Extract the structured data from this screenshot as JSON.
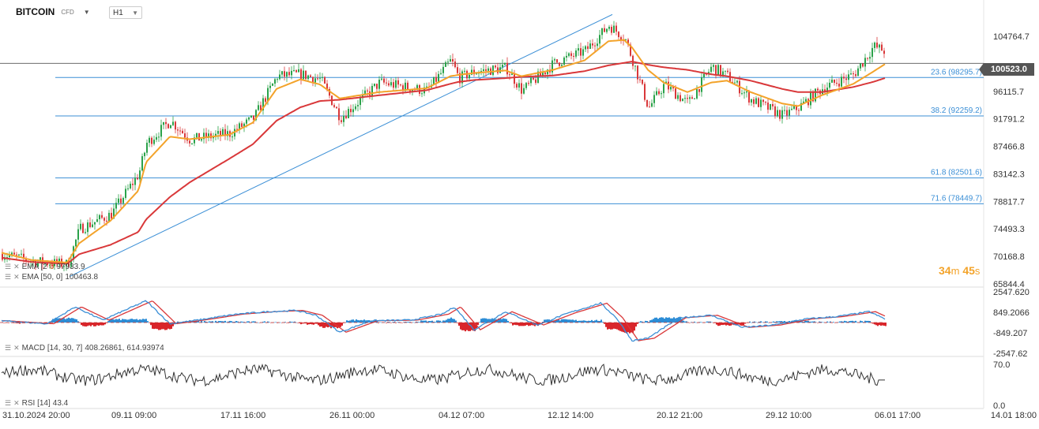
{
  "header": {
    "symbol": "BITCOIN",
    "symbol_sub": "CFD",
    "timeframe": "H1"
  },
  "current_price": "100523.0",
  "countdown": {
    "minutes": "34",
    "minutes_unit": "m",
    "seconds": "45",
    "seconds_unit": "s"
  },
  "colors": {
    "price_up": "#2aa24a",
    "price_down": "#d9383a",
    "ema_fast": "#f3a32a",
    "ema_slow": "#d9383a",
    "fib": "#3b8fd6",
    "trendline": "#3b8fd6",
    "macd_line": "#3b8fd6",
    "signal_line": "#d9383a",
    "hist_pos": "#2c8dd6",
    "hist_neg": "#d9252a",
    "rsi": "#333333"
  },
  "legends": {
    "ema_fast_label": "EMA [2",
    "ema_fast_mid": "0",
    "ema_fast_value": "97933.9",
    "ema_slow_label": "EMA [50, 0]",
    "ema_slow_value": "100463.8",
    "macd_label": "MACD [14, 30, 7]",
    "macd_value1": "408.26861,",
    "macd_value2": "614.93974",
    "rsi_label": "RSI [14]",
    "rsi_value": "43.4"
  },
  "chart_data": [
    {
      "type": "line",
      "name": "price",
      "ylim": [
        65844.4,
        108000
      ],
      "y_ticks": [
        "104764.7",
        "100439.9",
        "96115.7",
        "91791.2",
        "87466.8",
        "83142.3",
        "78817.7",
        "74493.3",
        "70168.8",
        "65844.4"
      ],
      "x_ticks": [
        "31.10.2024",
        "20:00",
        "09.11",
        "09:00",
        "17.11",
        "16:00",
        "26.11",
        "00:00",
        "04.12",
        "07:00",
        "12.12",
        "14:00",
        "20.12",
        "21:00",
        "29.12",
        "10:00",
        "06.01",
        "17:00",
        "14.01",
        "18:00"
      ],
      "x_range": [
        0,
        1245
      ],
      "ohlc_anchors_x": [
        0,
        40,
        85,
        100,
        140,
        175,
        185,
        215,
        240,
        290,
        320,
        350,
        380,
        405,
        430,
        480,
        540,
        570,
        580,
        600,
        640,
        660,
        700,
        740,
        770,
        790,
        800,
        820,
        840,
        870,
        900,
        920,
        950,
        990,
        1010,
        1040,
        1080,
        1105,
        1120
      ],
      "ohlc_anchors_close": [
        70600,
        69400,
        68900,
        74500,
        76800,
        83200,
        88000,
        91500,
        88500,
        89500,
        91800,
        98500,
        98800,
        98000,
        92000,
        97500,
        96200,
        101000,
        98200,
        99200,
        99800,
        96200,
        100500,
        102500,
        106500,
        104500,
        101000,
        93500,
        97200,
        94200,
        100000,
        98500,
        94800,
        92300,
        93600,
        96600,
        98800,
        103200,
        102400
      ],
      "last_value": 100523.0,
      "ema_fast_anchors": [
        70800,
        69600,
        69200,
        72200,
        75800,
        80500,
        85000,
        89000,
        88600,
        89300,
        91200,
        96500,
        98000,
        97200,
        95000,
        96000,
        96600,
        98500,
        98700,
        99000,
        99400,
        98500,
        99500,
        101000,
        104000,
        104200,
        103000,
        99500,
        97500,
        96000,
        97500,
        97800,
        96000,
        94200,
        93800,
        95500,
        97300,
        99200,
        100400
      ],
      "ema_slow_anchors": [
        70000,
        69300,
        69000,
        70500,
        72000,
        74000,
        76000,
        79500,
        81800,
        85500,
        87800,
        91500,
        93600,
        94600,
        94800,
        95500,
        96300,
        97300,
        97600,
        97900,
        98200,
        98400,
        98600,
        99300,
        100200,
        100600,
        100800,
        100300,
        99900,
        99500,
        98800,
        98500,
        97800,
        96500,
        96000,
        96000,
        96800,
        97600,
        98200
      ],
      "fib_levels": [
        {
          "label": "23.6 (98295.7)",
          "value": 98295.7
        },
        {
          "label": "38.2 (92259.2)",
          "value": 92259.2
        },
        {
          "label": "61.8 (82501.6)",
          "value": 82501.6
        },
        {
          "label": "71.6 (78449.7)",
          "value": 78449.7
        }
      ],
      "horizontal_line": 100523.0,
      "trendline_values": [
        67000,
        108200
      ]
    },
    {
      "type": "bar",
      "name": "MACD",
      "ylim": [
        -2547.62,
        2547.62
      ],
      "y_ticks": [
        "2547.620",
        "849.2066",
        "-849.207",
        "-2547.62"
      ],
      "macd_anchors_x": [
        0,
        60,
        95,
        130,
        185,
        215,
        250,
        300,
        340,
        375,
        400,
        430,
        470,
        520,
        560,
        575,
        600,
        640,
        680,
        720,
        760,
        780,
        800,
        820,
        860,
        900,
        940,
        980,
        1020,
        1060,
        1100,
        1120
      ],
      "macd_anchors": [
        150,
        -100,
        1300,
        200,
        1800,
        -100,
        200,
        700,
        900,
        1000,
        600,
        -800,
        150,
        200,
        700,
        1300,
        -600,
        900,
        -200,
        800,
        1600,
        400,
        -1500,
        -1300,
        400,
        600,
        -400,
        -200,
        300,
        500,
        900,
        300
      ]
    },
    {
      "type": "line",
      "name": "RSI",
      "ylim": [
        0,
        100
      ],
      "y_ticks": [
        "70.0",
        "0.0"
      ],
      "last_value": 43.4
    }
  ]
}
